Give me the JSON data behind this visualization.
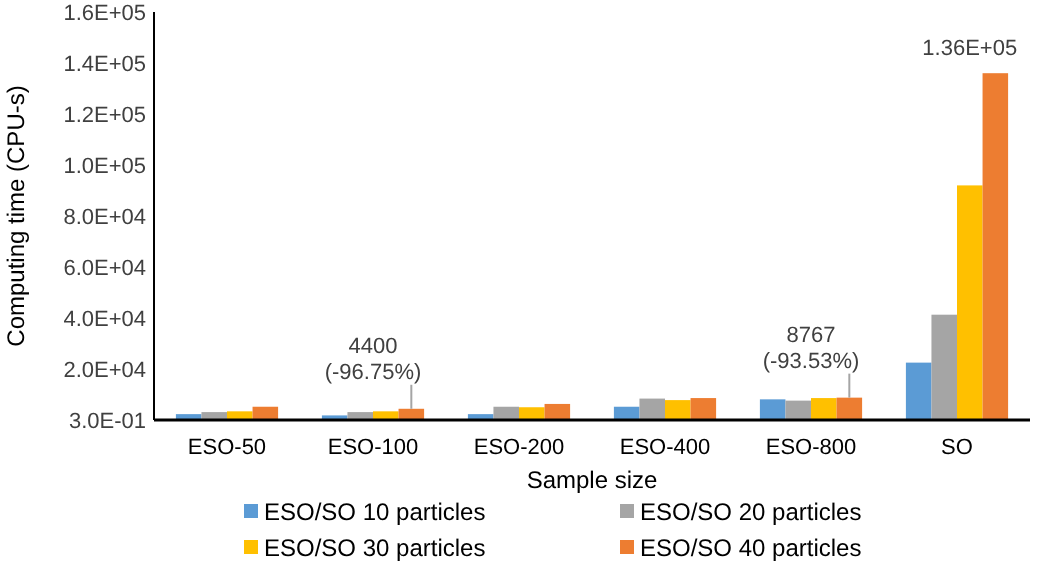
{
  "chart_data": {
    "type": "bar",
    "xlabel": "Sample size",
    "ylabel": "Computing time (CPU-s)",
    "categories": [
      "ESO-50",
      "ESO-100",
      "ESO-200",
      "ESO-400",
      "ESO-800",
      "SO"
    ],
    "series": [
      {
        "name": "ESO/SO 10 particles",
        "color": "#5b9bd5",
        "values": [
          2300,
          1800,
          2300,
          5200,
          8100,
          22500
        ]
      },
      {
        "name": "ESO/SO 20 particles",
        "color": "#a5a5a5",
        "values": [
          3100,
          3100,
          5200,
          8400,
          7600,
          41300
        ]
      },
      {
        "name": "ESO/SO 30 particles",
        "color": "#ffc000",
        "values": [
          3400,
          3400,
          5000,
          7800,
          8600,
          92000
        ]
      },
      {
        "name": "ESO/SO 40 particles",
        "color": "#ed7d31",
        "values": [
          5200,
          4400,
          6300,
          8600,
          8767,
          136000
        ],
        "value_labels": [
          null,
          "4400 (-96.75%)",
          null,
          null,
          "8767 (-93.53%)",
          "1.36E+05"
        ]
      }
    ],
    "ylim": [
      0.3,
      160000
    ],
    "yticks": [
      {
        "value": 0.3,
        "label": "3.0E-01"
      },
      {
        "value": 20000,
        "label": "2.0E+04"
      },
      {
        "value": 40000,
        "label": "4.0E+04"
      },
      {
        "value": 60000,
        "label": "6.0E+04"
      },
      {
        "value": 80000,
        "label": "8.0E+04"
      },
      {
        "value": 100000,
        "label": "1.0E+05"
      },
      {
        "value": 120000,
        "label": "1.2E+05"
      },
      {
        "value": 140000,
        "label": "1.4E+05"
      },
      {
        "value": 160000,
        "label": "1.6E+05"
      }
    ],
    "grid": false,
    "legend": "bottom"
  }
}
